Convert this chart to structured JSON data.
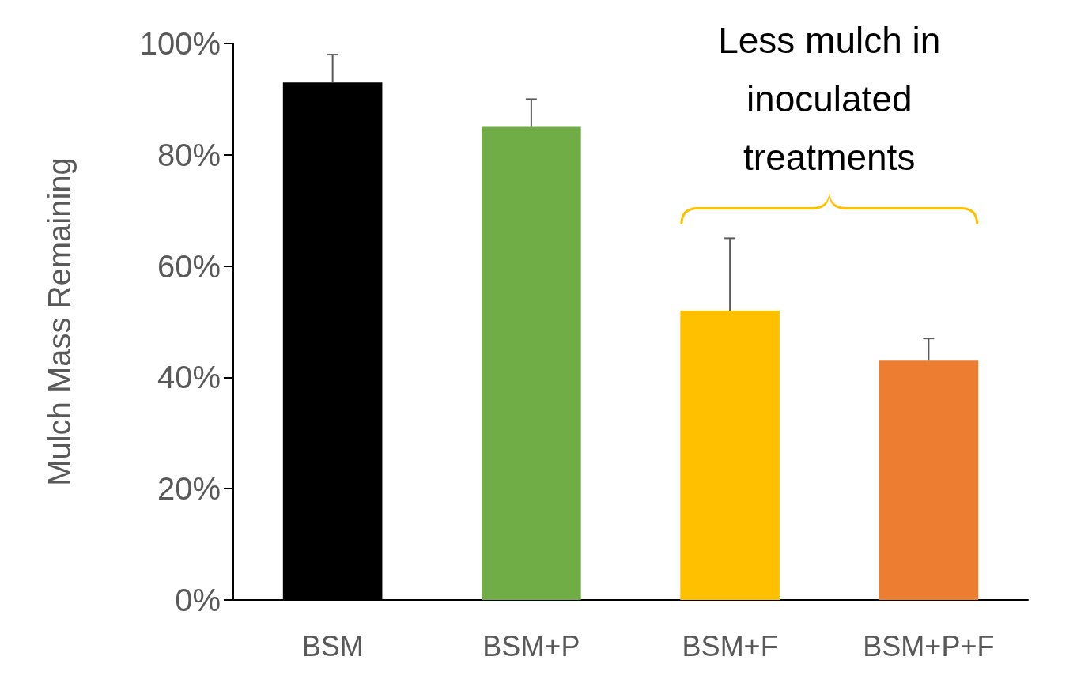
{
  "chart_data": {
    "type": "bar",
    "ylabel": "Mulch Mass Remaining",
    "categories": [
      "BSM",
      "BSM+P",
      "BSM+F",
      "BSM+P+F"
    ],
    "values": [
      93,
      85,
      52,
      43
    ],
    "colors": [
      "#000000",
      "#70ad47",
      "#ffc000",
      "#ed7d31"
    ],
    "errors": [
      [
        93,
        98
      ],
      [
        85,
        90
      ],
      [
        52,
        65
      ],
      [
        43,
        47
      ]
    ],
    "ylim": [
      0,
      100
    ],
    "yticks": [
      {
        "value": 0,
        "label": "0%"
      },
      {
        "value": 20,
        "label": "20%"
      },
      {
        "value": 40,
        "label": "40%"
      },
      {
        "value": 60,
        "label": "60%"
      },
      {
        "value": 80,
        "label": "80%"
      },
      {
        "value": 100,
        "label": "100%"
      }
    ],
    "grid": false,
    "annotations": [
      "Less mulch in inoculated treatments"
    ]
  }
}
